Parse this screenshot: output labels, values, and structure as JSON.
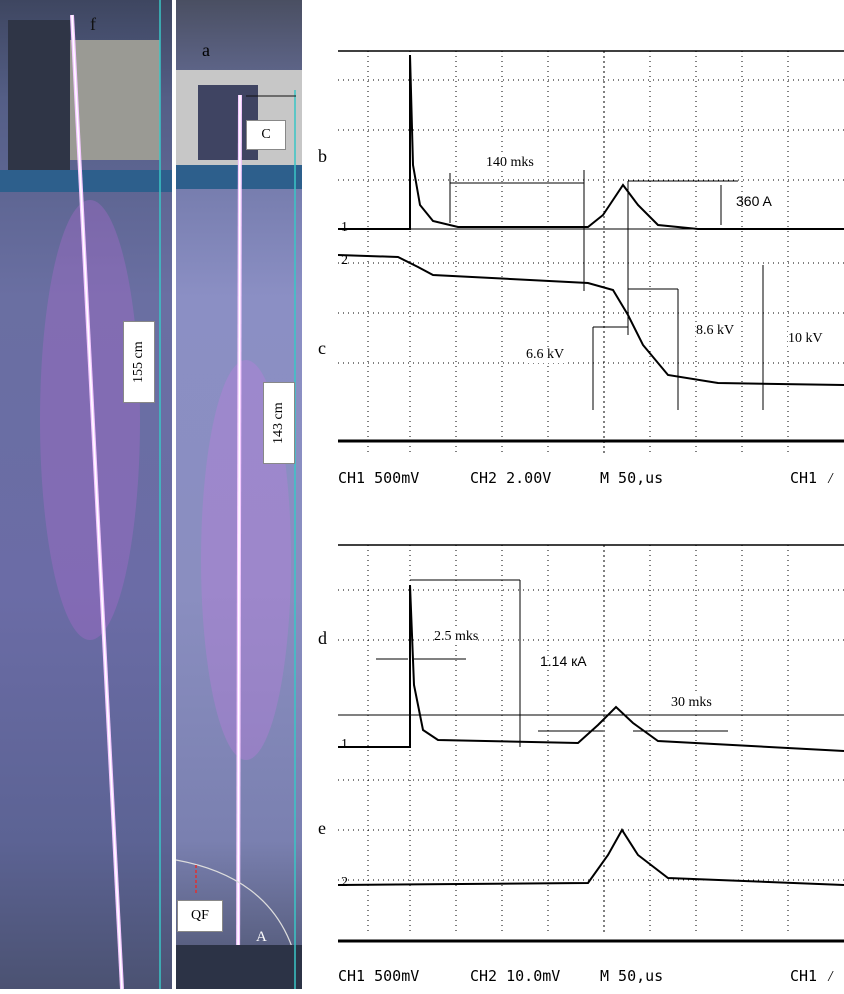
{
  "panel_labels": {
    "f": "f",
    "a": "a",
    "b": "b",
    "c": "c",
    "d": "d",
    "e": "e"
  },
  "photo_labels": {
    "length_f": "155 cm",
    "length_a": "143 cm",
    "cathode": "C",
    "anode": "A",
    "qf": "QF"
  },
  "scope_top": {
    "footer": {
      "ch1": "CH1 500mV",
      "ch2": "CH2 2.00V",
      "time": "M 50,us",
      "trigger": "CH1 ⁄"
    },
    "annotations": {
      "delay": "140 mks",
      "current": "360 A",
      "v1": "6.6 kV",
      "v2": "8.6 kV",
      "v3": "10 kV"
    },
    "channel_markers": {
      "ch1": "1",
      "ch2": "2"
    }
  },
  "scope_bottom": {
    "footer": {
      "ch1": "CH1 500mV",
      "ch2": "CH2 10.0mV",
      "time": "M 50,us",
      "trigger": "CH1 ⁄"
    },
    "annotations": {
      "width": "2.5 mks",
      "current": "1.14 кА",
      "width2": "30 mks"
    },
    "channel_markers": {
      "ch1": "1",
      "ch2": "2"
    }
  },
  "colors": {
    "discharge": "#f3c8ff",
    "frame_line": "#39c6c6",
    "trace": "#000000"
  }
}
